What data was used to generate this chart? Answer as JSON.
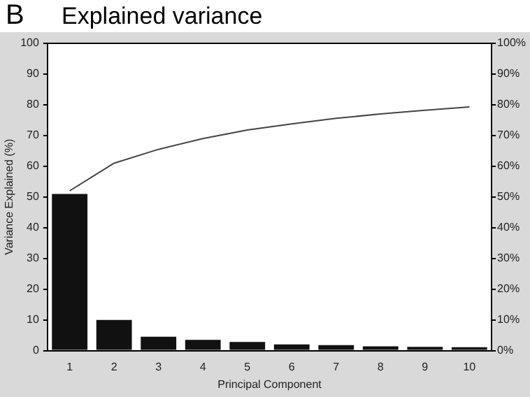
{
  "chart_data": {
    "type": "bar",
    "title": "Explained variance",
    "xlabel": "Principal Component",
    "ylabel": "Variance Explained (%)",
    "annotations": [
      "B"
    ],
    "categories": [
      "1",
      "2",
      "3",
      "4",
      "5",
      "6",
      "7",
      "8",
      "9",
      "10"
    ],
    "series": [
      {
        "color": "#111111",
        "values": [
          51,
          10,
          4.5,
          3.5,
          2.8,
          2,
          1.8,
          1.4,
          1.2,
          1.1
        ]
      },
      {
        "type": "line",
        "axis": "y2",
        "color": "#444444",
        "values": [
          52,
          61,
          65.5,
          69,
          71.8,
          73.8,
          75.6,
          77,
          78.2,
          79.3
        ]
      }
    ],
    "ylim": [
      0,
      100
    ],
    "yticks": [
      0,
      10,
      20,
      30,
      40,
      50,
      60,
      70,
      80,
      90,
      100
    ],
    "y2lim": [
      0,
      100
    ],
    "y2ticks": [
      {
        "value": 0,
        "label": "0%"
      },
      {
        "value": 10,
        "label": "10%"
      },
      {
        "value": 20,
        "label": "20%"
      },
      {
        "value": 30,
        "label": "30%"
      },
      {
        "value": 40,
        "label": "40%"
      },
      {
        "value": 50,
        "label": "50%"
      },
      {
        "value": 60,
        "label": "60%"
      },
      {
        "value": 70,
        "label": "70%"
      },
      {
        "value": 80,
        "label": "80%"
      },
      {
        "value": 90,
        "label": "90%"
      },
      {
        "value": 100,
        "label": "100%"
      }
    ],
    "grid": false,
    "legend": false,
    "marker": "none",
    "line_style": "solid"
  }
}
